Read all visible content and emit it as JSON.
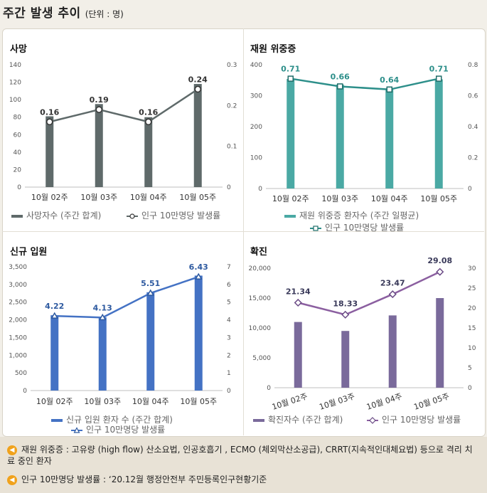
{
  "header": {
    "title": "주간 발생 추이",
    "unit": "(단위 : 명)"
  },
  "chart_data": [
    {
      "type": "bar+line",
      "title": "사망",
      "categories": [
        "10월 02주",
        "10월 03주",
        "10월 04주",
        "10월 05주"
      ],
      "series": [
        {
          "name": "사망자수 (주간 합계)",
          "kind": "bar",
          "axis": "left",
          "values": [
            81,
            95,
            80,
            118
          ],
          "color": "#5f6a6a"
        },
        {
          "name": "인구 10만명당 발생률",
          "kind": "line",
          "axis": "right",
          "values": [
            0.16,
            0.19,
            0.16,
            0.24
          ],
          "labels": [
            "0.16",
            "0.19",
            "0.16",
            "0.24"
          ],
          "color": "#5f6a6a"
        }
      ],
      "ylim_left": [
        0,
        140
      ],
      "yticks_left": [
        "0",
        "20",
        "40",
        "60",
        "80",
        "100",
        "120",
        "140"
      ],
      "ylim_right": [
        0,
        0.3
      ],
      "yticks_right": [
        "0",
        "0.1",
        "0.2",
        "0.3"
      ],
      "legend": "bottom"
    },
    {
      "type": "bar+line",
      "title": "재원 위중증",
      "categories": [
        "10월 02주",
        "10월 03주",
        "10월 04주",
        "10월 05주"
      ],
      "series": [
        {
          "name": "재원 위중증 환자수 (주간 일평균)",
          "kind": "bar",
          "axis": "left",
          "values": [
            354,
            336,
            322,
            353
          ],
          "color": "#4aa9a4"
        },
        {
          "name": "인구 10만명당 발생률",
          "kind": "line",
          "axis": "right",
          "values": [
            0.71,
            0.66,
            0.64,
            0.71
          ],
          "labels": [
            "0.71",
            "0.66",
            "0.64",
            "0.71"
          ],
          "color": "#2d8f8a"
        }
      ],
      "ylim_left": [
        0,
        400
      ],
      "yticks_left": [
        "0",
        "100",
        "200",
        "300",
        "400"
      ],
      "ylim_right": [
        0,
        0.8
      ],
      "yticks_right": [
        "0",
        "0.2",
        "0.4",
        "0.6",
        "0.8"
      ],
      "legend": "bottom"
    },
    {
      "type": "bar+line",
      "title": "신규 입원",
      "categories": [
        "10월 02주",
        "10월 03주",
        "10월 04주",
        "10월 05주"
      ],
      "series": [
        {
          "name": "신규 입원 환자 수 (주간 합계)",
          "kind": "bar",
          "axis": "left",
          "values": [
            2130,
            2070,
            2780,
            3250
          ],
          "color": "#4472c4"
        },
        {
          "name": "인구 10만명당 발생률",
          "kind": "line",
          "axis": "right",
          "values": [
            4.22,
            4.13,
            5.51,
            6.43
          ],
          "labels": [
            "4.22",
            "4.13",
            "5.51",
            "6.43"
          ],
          "color": "#4472c4"
        }
      ],
      "ylim_left": [
        0,
        3500
      ],
      "yticks_left": [
        "0",
        "500",
        "1,000",
        "1,500",
        "2,000",
        "2,500",
        "3,000",
        "3,500"
      ],
      "ylim_right": [
        0,
        7
      ],
      "yticks_right": [
        "0",
        "1",
        "2",
        "3",
        "4",
        "5",
        "6",
        "7"
      ],
      "legend": "bottom"
    },
    {
      "type": "bar+line",
      "title": "확진",
      "categories": [
        "10월 02주",
        "10월 03주",
        "10월 04주",
        "10월 05주"
      ],
      "series": [
        {
          "name": "확진자수 (주간 합계)",
          "kind": "bar",
          "axis": "left",
          "values": [
            11000,
            9500,
            12100,
            15000
          ],
          "color": "#7a6a9b"
        },
        {
          "name": "인구 10만명당 발생률",
          "kind": "line",
          "axis": "right",
          "values": [
            21.34,
            18.33,
            23.47,
            29.08
          ],
          "labels": [
            "21.34",
            "18.33",
            "23.47",
            "29.08"
          ],
          "color": "#8b5fa0"
        }
      ],
      "ylim_left": [
        0,
        20000
      ],
      "yticks_left": [
        "0",
        "5,000",
        "10,000",
        "15,000",
        "20,000"
      ],
      "ylim_right": [
        0,
        30
      ],
      "yticks_right": [
        "0",
        "5",
        "10",
        "15",
        "20",
        "25",
        "30"
      ],
      "legend": "bottom"
    }
  ],
  "notes": [
    "재원 위중증 : 고유량 (high flow) 산소요법, 인공호흡기 , ECMO (체외막산소공급), CRRT(지속적인대체요법) 등으로 격리 치료 중인 환자",
    "인구 10만명당 발생률 : ‘20.12월 행정안전부 주민등록인구현황기준"
  ]
}
